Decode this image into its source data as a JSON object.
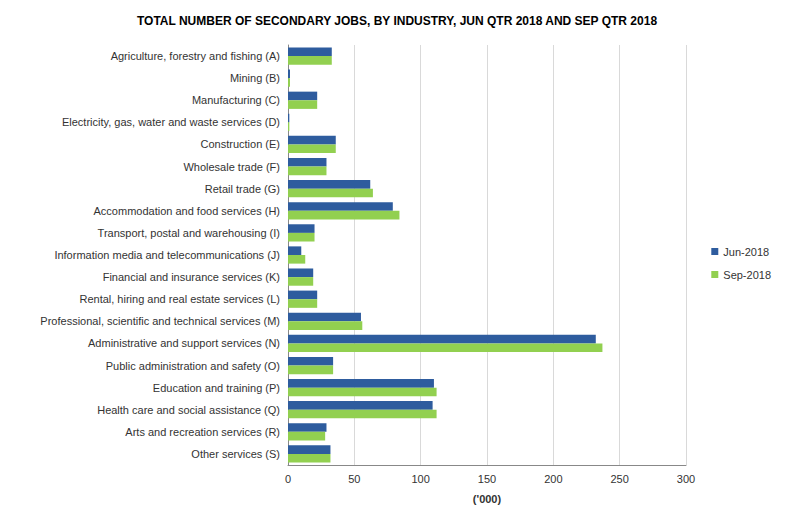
{
  "chart_data": {
    "type": "bar",
    "orientation": "horizontal",
    "title": "TOTAL NUMBER OF SECONDARY JOBS, BY INDUSTRY, JUN QTR 2018 AND SEP QTR 2018",
    "x_label": "('000)",
    "categories": [
      "Agriculture, forestry and fishing (A)",
      "Mining (B)",
      "Manufacturing (C)",
      "Electricity, gas, water and waste services (D)",
      "Construction (E)",
      "Wholesale trade (F)",
      "Retail trade (G)",
      "Accommodation and food services (H)",
      "Transport, postal and warehousing (I)",
      "Information media and telecommunications (J)",
      "Financial and insurance services (K)",
      "Rental, hiring and real estate services (L)",
      "Professional, scientific and technical services (M)",
      "Administrative and support services (N)",
      "Public administration and safety (O)",
      "Education and training (P)",
      "Health care and social assistance (Q)",
      "Arts and recreation services (R)",
      "Other services (S)"
    ],
    "series": [
      {
        "name": "Jun-2018",
        "color": "#2e5c9e",
        "values": [
          33,
          1.5,
          22,
          1,
          36,
          29,
          62,
          79,
          20,
          10,
          19,
          22,
          55,
          232,
          34,
          110,
          109,
          29,
          32
        ]
      },
      {
        "name": "Sep-2018",
        "color": "#92d050",
        "values": [
          33,
          1.5,
          22,
          1,
          36,
          29,
          64,
          84,
          20,
          13,
          19,
          22,
          56,
          237,
          34,
          112,
          112,
          28,
          32
        ]
      }
    ],
    "xlim": [
      0,
      300
    ],
    "xticks": [
      0,
      50,
      100,
      150,
      200,
      250,
      300
    ],
    "grid": true,
    "legend": "right"
  }
}
